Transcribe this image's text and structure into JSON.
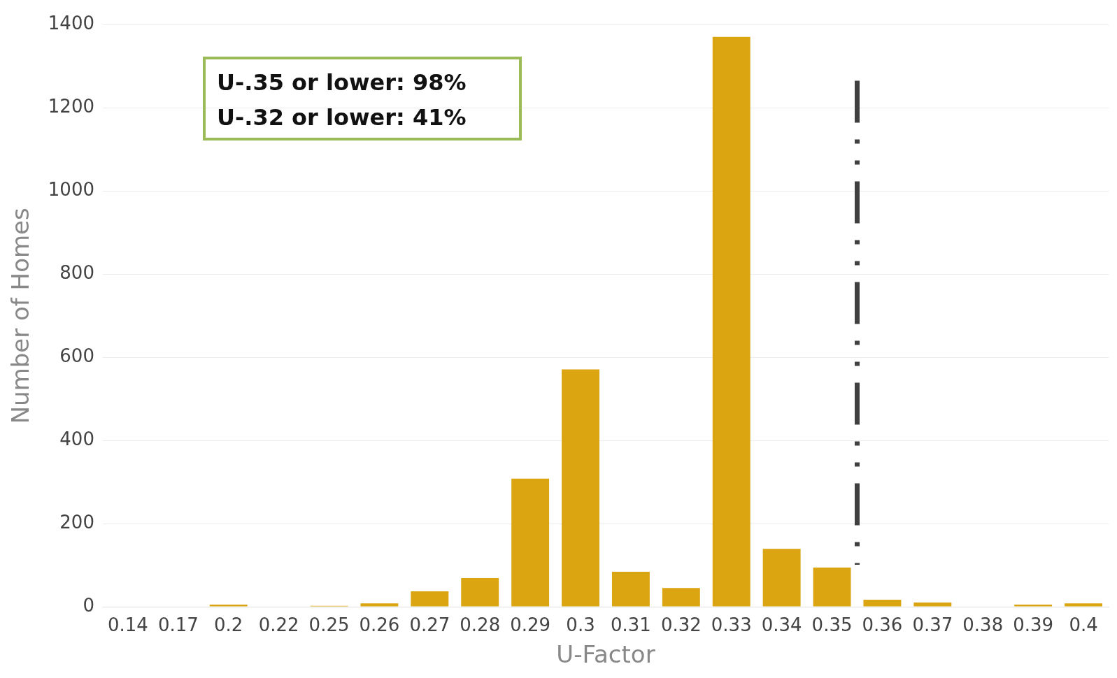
{
  "chart_data": {
    "type": "bar",
    "xlabel": "U-Factor",
    "ylabel": "Number of Homes",
    "categories": [
      "0.14",
      "0.17",
      "0.2",
      "0.22",
      "0.25",
      "0.26",
      "0.27",
      "0.28",
      "0.29",
      "0.3",
      "0.31",
      "0.32",
      "0.33",
      "0.34",
      "0.35",
      "0.36",
      "0.37",
      "0.38",
      "0.39",
      "0.4"
    ],
    "values": [
      0,
      0,
      5,
      0,
      2,
      8,
      37,
      69,
      308,
      571,
      84,
      45,
      1371,
      139,
      94,
      17,
      10,
      0,
      5,
      8
    ],
    "color": "#daa511",
    "ref_lines": [
      {
        "axis": "x",
        "value": "0.35",
        "color": "#404040",
        "line_style": "dashed"
      }
    ],
    "ylim": [
      0,
      1400
    ],
    "yticks": [
      0,
      200,
      400,
      600,
      800,
      1000,
      1200,
      1400
    ],
    "grid": "y",
    "annotations": [
      "U-.35 or lower: 98%",
      "U-.32 or lower: 41%"
    ]
  }
}
